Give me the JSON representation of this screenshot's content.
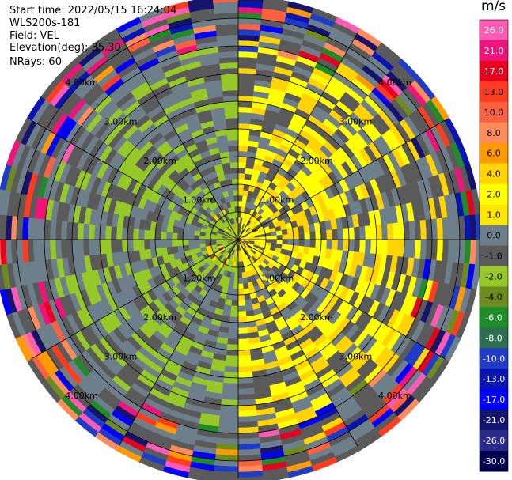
{
  "info": {
    "start_time": "Start time: 2022/05/15 16:24:04",
    "instrument": "WLS200s-181",
    "field": "Field: VEL",
    "elevation": "Elevation(deg): 35.30",
    "nrays": "NRays: 60"
  },
  "colorbar": {
    "unit": "m/s",
    "ticks": [
      "26.0",
      "21.0",
      "17.0",
      "13.0",
      "10.0",
      "8.0",
      "6.0",
      "4.0",
      "2.0",
      "1.0",
      "0.0",
      "-1.0",
      "-2.0",
      "-4.0",
      "-6.0",
      "-8.0",
      "-10.0",
      "-13.0",
      "-17.0",
      "-21.0",
      "-26.0",
      "-30.0"
    ],
    "colors": [
      "#ff5ab4",
      "#f0147a",
      "#e8001e",
      "#ff3c1e",
      "#ff6040",
      "#ff8c5a",
      "#ff9a00",
      "#ffd400",
      "#ffff00",
      "#ffe600",
      "#6e7f8c",
      "#5a5a5a",
      "#96c828",
      "#6e8c1e",
      "#1e8c28",
      "#2f6e50",
      "#1e3cc8",
      "#0a14b4",
      "#0000ff",
      "#14146e",
      "#2a2a8c",
      "#000050"
    ]
  },
  "chart_data": {
    "type": "ppi",
    "title": "",
    "field": "VEL",
    "units": "m/s",
    "n_rays": 60,
    "elevation_deg": 35.3,
    "range_rings_km": [
      1.0,
      2.0,
      3.0,
      4.0
    ],
    "range_ring_labels": [
      "1.00km",
      "2.00km",
      "3.00km",
      "4.00km"
    ],
    "color_range": [
      -30.0,
      30.0
    ],
    "grid": true
  }
}
